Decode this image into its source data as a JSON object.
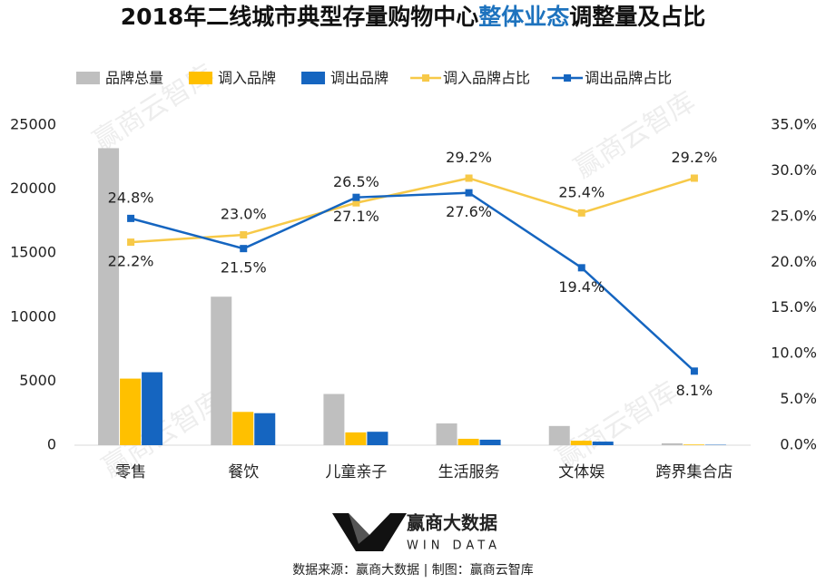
{
  "chart_data": {
    "type": "bar",
    "title": [
      {
        "text": "2018年二线城市典型存量购物中心",
        "color": "#111111"
      },
      {
        "text": "整体业态",
        "color": "#1e73be"
      },
      {
        "text": "调整量及占比",
        "color": "#111111"
      }
    ],
    "categories": [
      "零售",
      "餐饮",
      "儿童亲子",
      "生活服务",
      "文体娱",
      "跨界集合店"
    ],
    "series": [
      {
        "name": "品牌总量",
        "type": "bar",
        "color": "#bfbfbf",
        "values": [
          23200,
          11600,
          4000,
          1700,
          1500,
          150
        ]
      },
      {
        "name": "调入品牌",
        "type": "bar",
        "color": "#ffc000",
        "values": [
          5200,
          2600,
          1000,
          500,
          350,
          50
        ]
      },
      {
        "name": "调出品牌",
        "type": "bar",
        "color": "#1565c0",
        "values": [
          5700,
          2500,
          1050,
          430,
          280,
          30
        ]
      },
      {
        "name": "调入品牌占比",
        "type": "line",
        "axis": "y2",
        "color": "#f7c948",
        "values": [
          22.2,
          23.0,
          26.5,
          29.2,
          25.4,
          29.2
        ],
        "value_labels": [
          "22.2%",
          "23.0%",
          "26.5%",
          "29.2%",
          "25.4%",
          "29.2%"
        ]
      },
      {
        "name": "调出品牌占比",
        "type": "line",
        "axis": "y2",
        "color": "#1565c0",
        "values": [
          24.8,
          21.5,
          27.1,
          27.6,
          19.4,
          8.1
        ],
        "value_labels": [
          "24.8%",
          "21.5%",
          "27.1%",
          "27.6%",
          "19.4%",
          "8.1%"
        ]
      }
    ],
    "ylim": [
      0,
      25000
    ],
    "yticks": [
      0,
      5000,
      10000,
      15000,
      20000,
      25000
    ],
    "y2lim": [
      0,
      35
    ],
    "y2ticks": [
      {
        "value": 0,
        "label": "0.0%"
      },
      {
        "value": 5,
        "label": "5.0%"
      },
      {
        "value": 10,
        "label": "10.0%"
      },
      {
        "value": 15,
        "label": "15.0%"
      },
      {
        "value": 20,
        "label": "20.0%"
      },
      {
        "value": 25,
        "label": "25.0%"
      },
      {
        "value": 30,
        "label": "30.0%"
      },
      {
        "value": 35,
        "label": "35.0%"
      }
    ],
    "legend": "top",
    "grid": false,
    "watermark": "赢商云智库",
    "logo": {
      "name": "赢商大数据",
      "subtitle": "WIN DATA"
    },
    "source": "数据来源：赢商大数据 | 制图：赢商云智库"
  }
}
